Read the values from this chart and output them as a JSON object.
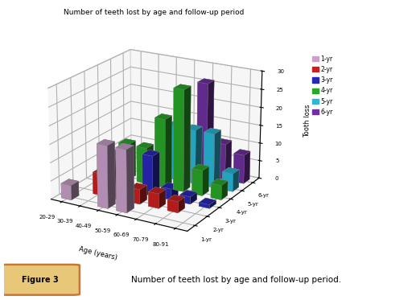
{
  "title": "Number of teeth lost by age and follow-up period",
  "xlabel": "Age (years)",
  "ylabel": "Tooth loss",
  "age_groups": [
    "20-29",
    "30-39",
    "40-49",
    "50-59",
    "60-69",
    "70-79",
    "80-91"
  ],
  "followup_years": [
    "1-yr",
    "2-yr",
    "3-yr",
    "4-yr",
    "5-yr",
    "6-yr"
  ],
  "colors": [
    "#c8a0c8",
    "#cc2020",
    "#2828b8",
    "#28a828",
    "#28b8d8",
    "#7030a0"
  ],
  "data": [
    [
      4,
      0,
      0,
      0,
      0,
      0
    ],
    [
      0,
      6,
      9,
      10,
      0,
      0
    ],
    [
      17,
      3,
      0,
      10,
      0,
      12
    ],
    [
      17,
      4,
      11,
      19,
      15,
      0
    ],
    [
      0,
      4,
      3,
      28,
      15,
      26
    ],
    [
      0,
      3,
      2,
      7,
      15,
      10
    ],
    [
      0,
      0,
      1,
      4,
      5,
      8
    ]
  ],
  "ylim": [
    0,
    30
  ],
  "figure_label": "Figure 3",
  "figure_caption": "Number of teeth lost by age and follow-up period.",
  "background_color": "#ffffff",
  "border_color": "#c87832",
  "caption_bg": "#e8c878",
  "elev": 20,
  "azim": -60
}
